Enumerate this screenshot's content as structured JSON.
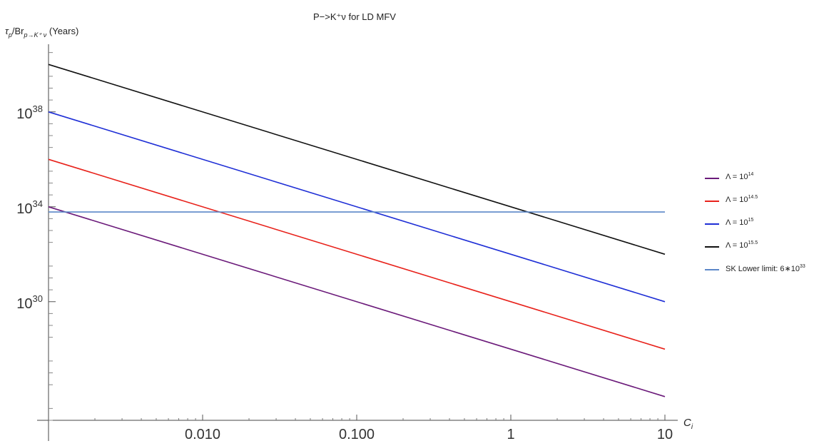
{
  "chart_data": {
    "type": "line",
    "title": "P−>K⁺ν for LD MFV",
    "ylabel": {
      "prefix": "τ",
      "prefix_sub": "p",
      "middle": "/Br",
      "middle_sub": "p→K⁺ ν",
      "suffix": " (Years)"
    },
    "xlabel": {
      "main": "C",
      "sub": "i"
    },
    "x_scale": "log",
    "y_scale": "log",
    "xlim": [
      0.001,
      10
    ],
    "ylim_log10": [
      25.0,
      40.85
    ],
    "x_ticks": [
      {
        "value": 0.01,
        "label": "0.010"
      },
      {
        "value": 0.1,
        "label": "0.100"
      },
      {
        "value": 1,
        "label": "1"
      },
      {
        "value": 10,
        "label": "10"
      }
    ],
    "y_ticks": [
      {
        "exp": 38,
        "base": "10",
        "sup": "38"
      },
      {
        "exp": 34,
        "base": "10",
        "sup": "34"
      },
      {
        "exp": 30,
        "base": "10",
        "sup": "30"
      }
    ],
    "series": [
      {
        "name": "Λ = 10",
        "name_sup": "14",
        "color": "#6b1a7a",
        "x": [
          0.001,
          10
        ],
        "y_log10": [
          34.0,
          26.0
        ]
      },
      {
        "name": "Λ = 10",
        "name_sup": "14.5",
        "color": "#e8221b",
        "x": [
          0.001,
          10
        ],
        "y_log10": [
          36.0,
          28.0
        ]
      },
      {
        "name": "Λ = 10",
        "name_sup": "15",
        "color": "#1f2fd6",
        "x": [
          0.001,
          10
        ],
        "y_log10": [
          38.0,
          30.0
        ]
      },
      {
        "name": "Λ = 10",
        "name_sup": "15.5",
        "color": "#111111",
        "x": [
          0.001,
          10
        ],
        "y_log10": [
          40.0,
          32.0
        ]
      },
      {
        "name": "SK Lower limit: 6∗10",
        "name_sup": "33",
        "color": "#5b87c8",
        "x": [
          0.001,
          10
        ],
        "y": [
          6e+33,
          6e+33
        ]
      }
    ],
    "legend_position": "right",
    "grid": false
  }
}
